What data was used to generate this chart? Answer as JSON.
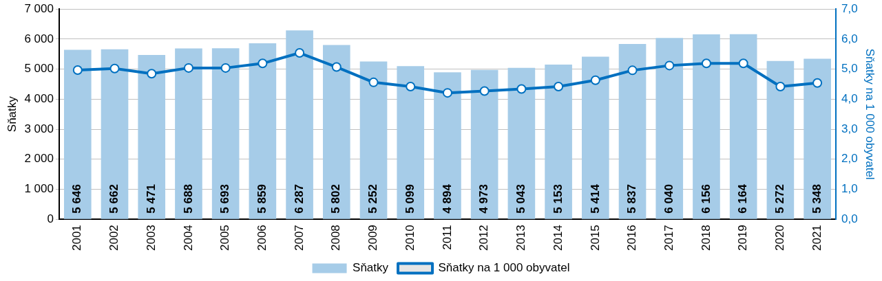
{
  "chart_data": {
    "type": "bar",
    "ylabel": "Sňatky",
    "y2label": "Sňatky na 1 000 obyvatel",
    "categories": [
      "2001",
      "2002",
      "2003",
      "2004",
      "2005",
      "2006",
      "2007",
      "2008",
      "2009",
      "2010",
      "2011",
      "2012",
      "2013",
      "2014",
      "2015",
      "2016",
      "2017",
      "2018",
      "2019",
      "2020",
      "2021"
    ],
    "series": [
      {
        "name": "Sňatky",
        "color": "#a6cce8",
        "values": [
          5646,
          5662,
          5471,
          5688,
          5693,
          5859,
          6287,
          5802,
          5252,
          5099,
          4894,
          4973,
          5043,
          5153,
          5414,
          5837,
          6040,
          6156,
          6164,
          5272,
          5348
        ],
        "value_labels": [
          "5 646",
          "5 662",
          "5 471",
          "5 688",
          "5 693",
          "5 859",
          "6 287",
          "5 802",
          "5 252",
          "5 099",
          "4 894",
          "4 973",
          "5 043",
          "5 153",
          "5 414",
          "5 837",
          "6 040",
          "6 156",
          "6 164",
          "5 272",
          "5 348"
        ]
      },
      {
        "name": "Sňatky na 1 000 obyvatel",
        "type": "line",
        "axis": "y2",
        "color": "#0070c0",
        "marker": "circle",
        "values": [
          4.97,
          5.02,
          4.85,
          5.04,
          5.04,
          5.19,
          5.54,
          5.07,
          4.56,
          4.42,
          4.21,
          4.27,
          4.34,
          4.42,
          4.63,
          4.96,
          5.12,
          5.19,
          5.19,
          4.42,
          4.54
        ]
      }
    ],
    "ylim": [
      0,
      7000
    ],
    "yticks": [
      0,
      {
        "value": 1000,
        "label": "1 000"
      },
      {
        "value": 2000,
        "label": "2 000"
      },
      {
        "value": 3000,
        "label": "3 000"
      },
      {
        "value": 4000,
        "label": "4 000"
      },
      {
        "value": 5000,
        "label": "5 000"
      },
      {
        "value": 6000,
        "label": "6 000"
      },
      {
        "value": 7000,
        "label": "7 000"
      }
    ],
    "y2lim": [
      0,
      7
    ],
    "y2ticks": [
      {
        "value": 0,
        "label": "0,0"
      },
      {
        "value": 1,
        "label": "1,0"
      },
      {
        "value": 2,
        "label": "2,0"
      },
      {
        "value": 3,
        "label": "3,0"
      },
      {
        "value": 4,
        "label": "4,0"
      },
      {
        "value": 5,
        "label": "5,0"
      },
      {
        "value": 6,
        "label": "6,0"
      },
      {
        "value": 7,
        "label": "7,0"
      }
    ],
    "grid": "y",
    "legend": "bottom"
  }
}
